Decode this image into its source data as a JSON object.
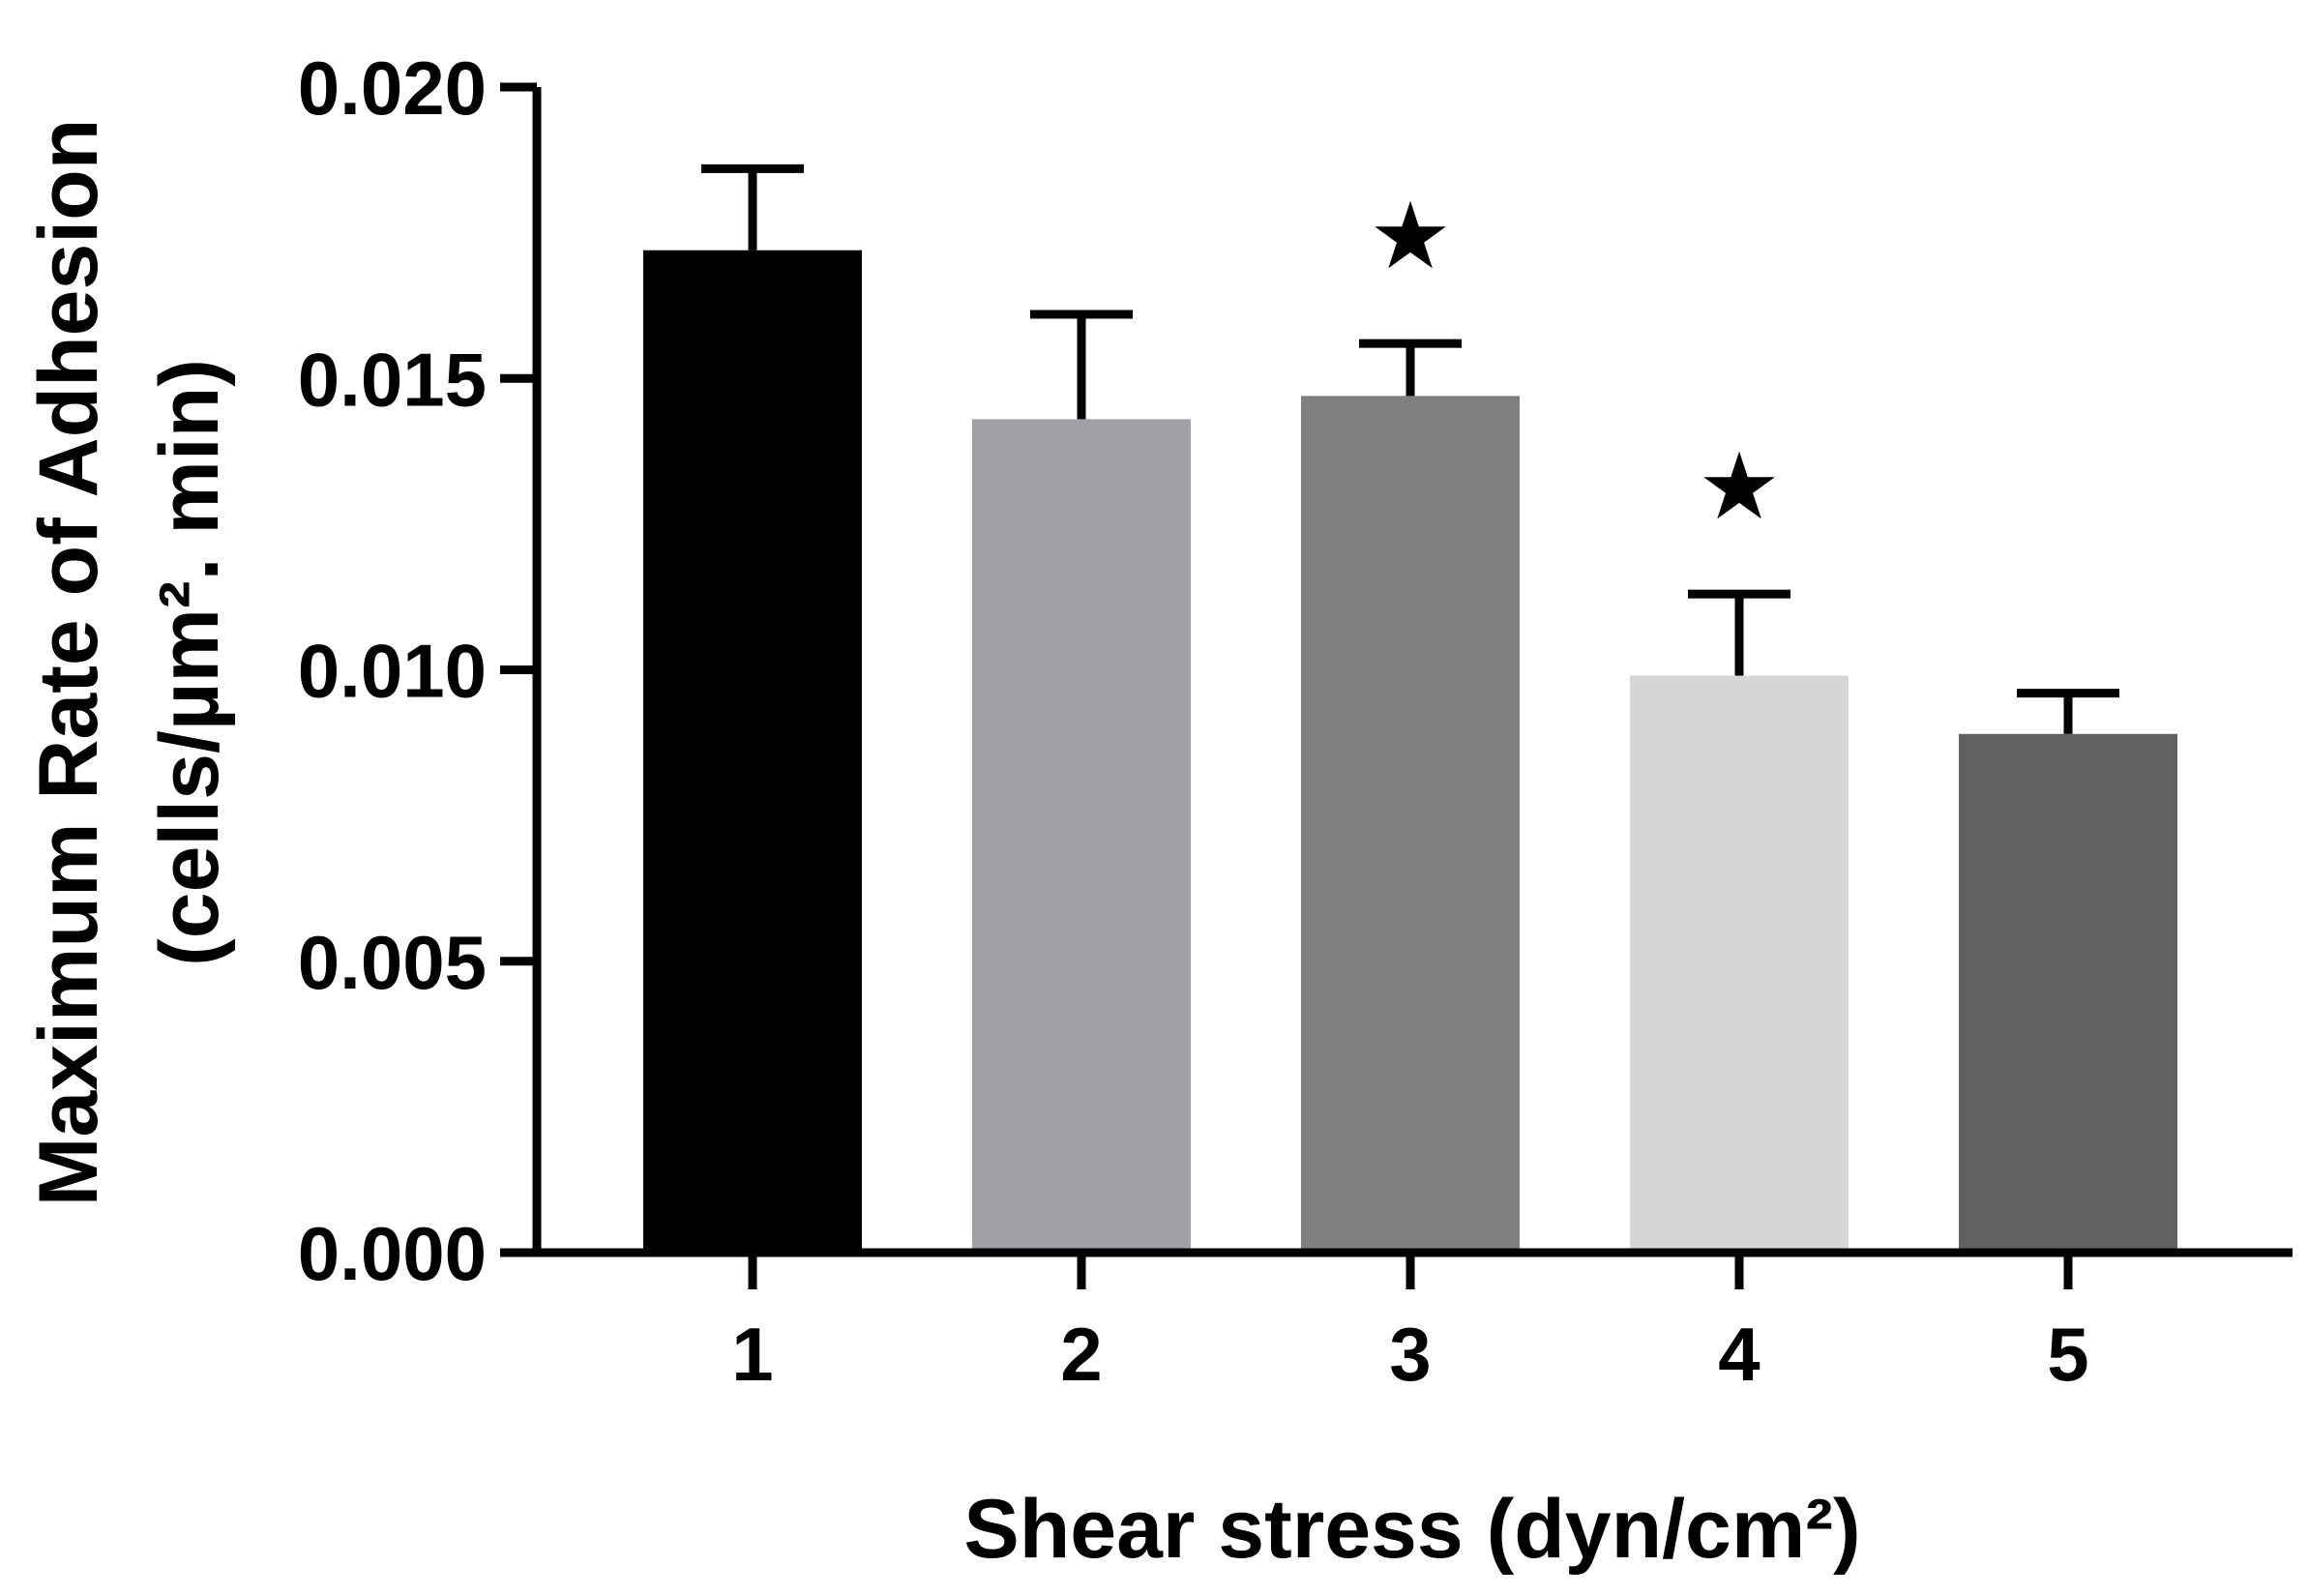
{
  "chart_data": {
    "type": "bar",
    "xlabel": "Shear stress (dyn/cm²)",
    "ylabel_line1": "Maximum Rate of Adhesion",
    "ylabel_line2": "(cells/µm². min)",
    "ylim": [
      0,
      0.02
    ],
    "yticks": [
      "0.000",
      "0.005",
      "0.010",
      "0.015",
      "0.020"
    ],
    "ytick_values": [
      0,
      0.005,
      0.01,
      0.015,
      0.02
    ],
    "categories": [
      "1",
      "2",
      "3",
      "4",
      "5"
    ],
    "values": [
      0.0172,
      0.0143,
      0.0147,
      0.0099,
      0.0089
    ],
    "errors": [
      0.0014,
      0.0018,
      0.0009,
      0.0014,
      0.0007
    ],
    "colors": [
      "#000000",
      "#a0a1a5",
      "#808080",
      "#d6d6d6",
      "#616161"
    ],
    "significance": [
      "",
      "",
      "★",
      "★",
      ""
    ]
  }
}
